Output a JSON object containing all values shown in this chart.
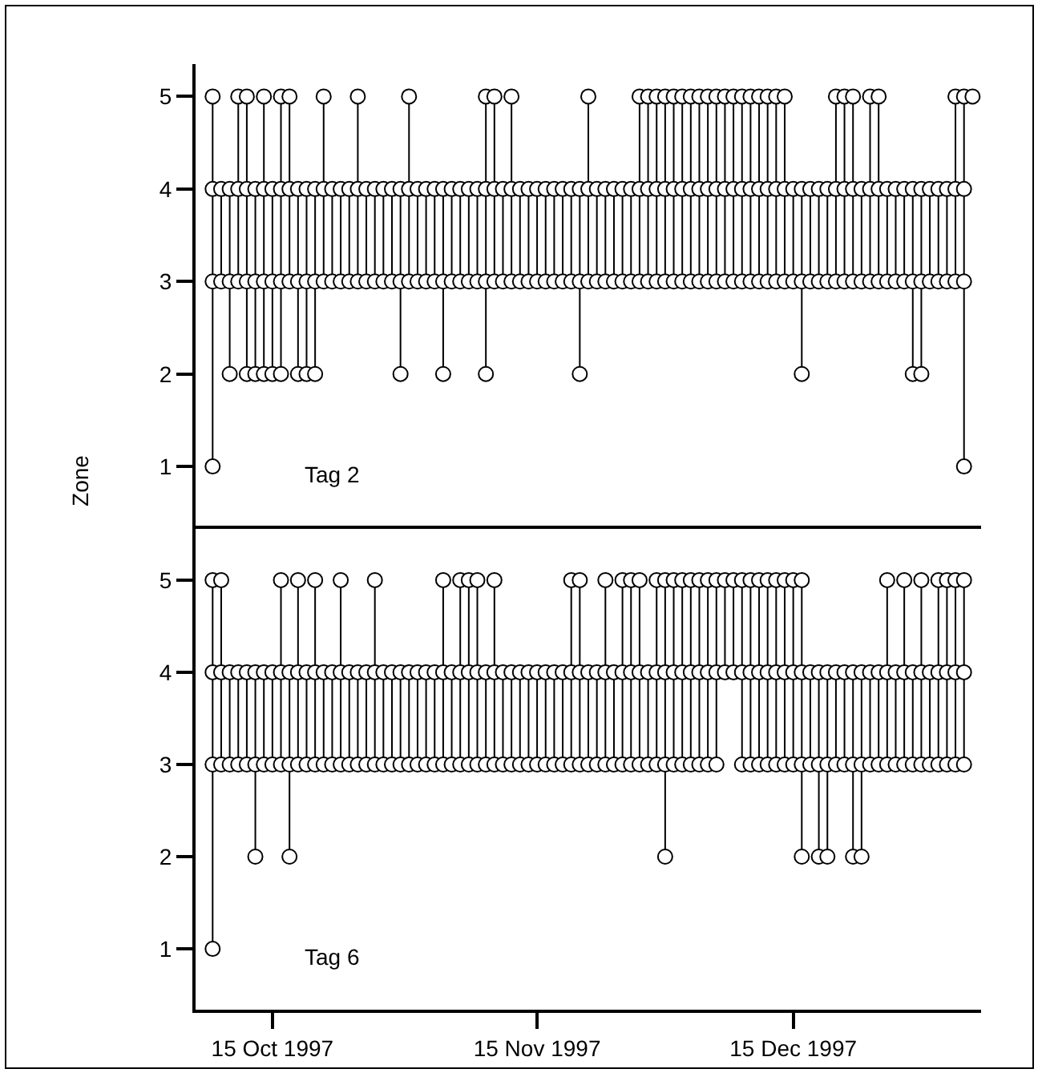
{
  "chart_data": [
    {
      "type": "line",
      "ylabel": "Zone",
      "annotations": [
        "Tag 2"
      ],
      "xlim": [
        "1997-10-06",
        "1998-01-06"
      ],
      "ylim": [
        0.36,
        5.35
      ],
      "yticks": [
        1,
        2,
        3,
        4,
        5
      ],
      "tick_labels": "y",
      "grid": false,
      "marker": "circle",
      "line_style": "solid",
      "series": [
        {
          "color": "#000000",
          "x": [
            "1997-10-08",
            "1997-10-08",
            "1997-10-08",
            "1997-10-08",
            "1997-10-09",
            "1997-10-09",
            "1997-10-10",
            "1997-10-10",
            "1997-10-10",
            "1997-10-11",
            "1997-10-11",
            "1997-10-11",
            "1997-10-12",
            "1997-10-12",
            "1997-10-12",
            "1997-10-12",
            "1997-10-13",
            "1997-10-13",
            "1997-10-13",
            "1997-10-14",
            "1997-10-14",
            "1997-10-14",
            "1997-10-14",
            "1997-10-15",
            "1997-10-15",
            "1997-10-15",
            "1997-10-16",
            "1997-10-16",
            "1997-10-16",
            "1997-10-16",
            "1997-10-17",
            "1997-10-17",
            "1997-10-17",
            "1997-10-18",
            "1997-10-18",
            "1997-10-18",
            "1997-10-19",
            "1997-10-19",
            "1997-10-19",
            "1997-10-20",
            "1997-10-20",
            "1997-10-20",
            "1997-10-21",
            "1997-10-21",
            "1997-10-21",
            "1997-10-22",
            "1997-10-22",
            "1997-10-23",
            "1997-10-23",
            "1997-10-24",
            "1997-10-24",
            "1997-10-25",
            "1997-10-25",
            "1997-10-25",
            "1997-10-26",
            "1997-10-26",
            "1997-10-27",
            "1997-10-27",
            "1997-10-28",
            "1997-10-28",
            "1997-10-29",
            "1997-10-29",
            "1997-10-30",
            "1997-10-30",
            "1997-10-30",
            "1997-10-31",
            "1997-10-31",
            "1997-10-31",
            "1997-11-01",
            "1997-11-01",
            "1997-11-02",
            "1997-11-02",
            "1997-11-03",
            "1997-11-03",
            "1997-11-04",
            "1997-11-04",
            "1997-11-04",
            "1997-11-05",
            "1997-11-05",
            "1997-11-06",
            "1997-11-06",
            "1997-11-07",
            "1997-11-07",
            "1997-11-08",
            "1997-11-08",
            "1997-11-09",
            "1997-11-09",
            "1997-11-09",
            "1997-11-09",
            "1997-11-10",
            "1997-11-10",
            "1997-11-10",
            "1997-11-11",
            "1997-11-11",
            "1997-11-12",
            "1997-11-12",
            "1997-11-12",
            "1997-11-13",
            "1997-11-13",
            "1997-11-14",
            "1997-11-14",
            "1997-11-15",
            "1997-11-15",
            "1997-11-16",
            "1997-11-16",
            "1997-11-17",
            "1997-11-17",
            "1997-11-18",
            "1997-11-18",
            "1997-11-19",
            "1997-11-19",
            "1997-11-20",
            "1997-11-20",
            "1997-11-20",
            "1997-11-21",
            "1997-11-21",
            "1997-11-21",
            "1997-11-22",
            "1997-11-22",
            "1997-11-23",
            "1997-11-23",
            "1997-11-24",
            "1997-11-24",
            "1997-11-25",
            "1997-11-25",
            "1997-11-26",
            "1997-11-26",
            "1997-11-27",
            "1997-11-27",
            "1997-11-27",
            "1997-11-28",
            "1997-11-28",
            "1997-11-28",
            "1997-11-29",
            "1997-11-29",
            "1997-11-29",
            "1997-11-30",
            "1997-11-30",
            "1997-11-30",
            "1997-12-01",
            "1997-12-01",
            "1997-12-01",
            "1997-12-02",
            "1997-12-02",
            "1997-12-02",
            "1997-12-03",
            "1997-12-03",
            "1997-12-03",
            "1997-12-04",
            "1997-12-04",
            "1997-12-04",
            "1997-12-05",
            "1997-12-05",
            "1997-12-05",
            "1997-12-06",
            "1997-12-06",
            "1997-12-06",
            "1997-12-07",
            "1997-12-07",
            "1997-12-07",
            "1997-12-08",
            "1997-12-08",
            "1997-12-08",
            "1997-12-09",
            "1997-12-09",
            "1997-12-09",
            "1997-12-10",
            "1997-12-10",
            "1997-12-10",
            "1997-12-11",
            "1997-12-11",
            "1997-12-11",
            "1997-12-12",
            "1997-12-12",
            "1997-12-12",
            "1997-12-13",
            "1997-12-13",
            "1997-12-13",
            "1997-12-14",
            "1997-12-14",
            "1997-12-14",
            "1997-12-15",
            "1997-12-15",
            "1997-12-16",
            "1997-12-16",
            "1997-12-16",
            "1997-12-17",
            "1997-12-17",
            "1997-12-18",
            "1997-12-18",
            "1997-12-19",
            "1997-12-19",
            "1997-12-20",
            "1997-12-20",
            "1997-12-20",
            "1997-12-21",
            "1997-12-21",
            "1997-12-21",
            "1997-12-22",
            "1997-12-22",
            "1997-12-22",
            "1997-12-23",
            "1997-12-23",
            "1997-12-24",
            "1997-12-24",
            "1997-12-24",
            "1997-12-25",
            "1997-12-25",
            "1997-12-25",
            "1997-12-26",
            "1997-12-26",
            "1997-12-27",
            "1997-12-27",
            "1997-12-28",
            "1997-12-28",
            "1997-12-29",
            "1997-12-29",
            "1997-12-29",
            "1997-12-30",
            "1997-12-30",
            "1997-12-30",
            "1997-12-31",
            "1997-12-31",
            "1998-01-01",
            "1998-01-01",
            "1998-01-02",
            "1998-01-02",
            "1998-01-03",
            "1998-01-03",
            "1998-01-03",
            "1998-01-04",
            "1998-01-04",
            "1998-01-04",
            "1998-01-04",
            "1998-01-05"
          ],
          "values": [
            1,
            5,
            4,
            3,
            3,
            4,
            4,
            2,
            3,
            3,
            5,
            4,
            4,
            5,
            2,
            3,
            3,
            2,
            4,
            4,
            5,
            2,
            3,
            3,
            2,
            4,
            4,
            5,
            2,
            3,
            3,
            5,
            4,
            4,
            2,
            3,
            3,
            2,
            4,
            4,
            2,
            3,
            3,
            5,
            4,
            4,
            3,
            3,
            4,
            4,
            3,
            3,
            5,
            4,
            4,
            3,
            3,
            4,
            4,
            3,
            3,
            4,
            4,
            2,
            3,
            3,
            5,
            4,
            4,
            3,
            3,
            4,
            4,
            3,
            3,
            2,
            4,
            4,
            3,
            3,
            4,
            4,
            3,
            3,
            4,
            4,
            5,
            2,
            3,
            3,
            5,
            4,
            4,
            3,
            3,
            5,
            4,
            4,
            3,
            3,
            4,
            4,
            3,
            3,
            4,
            4,
            3,
            3,
            4,
            4,
            3,
            3,
            2,
            4,
            4,
            5,
            3,
            3,
            4,
            4,
            3,
            3,
            4,
            4,
            3,
            3,
            4,
            4,
            5,
            3,
            3,
            5,
            4,
            4,
            5,
            3,
            3,
            5,
            4,
            4,
            5,
            3,
            3,
            5,
            4,
            4,
            5,
            3,
            3,
            5,
            4,
            4,
            5,
            3,
            3,
            5,
            4,
            4,
            5,
            3,
            3,
            5,
            4,
            4,
            5,
            3,
            3,
            5,
            4,
            4,
            5,
            3,
            3,
            5,
            4,
            4,
            5,
            3,
            3,
            5,
            4,
            4,
            3,
            3,
            2,
            4,
            4,
            3,
            3,
            4,
            4,
            3,
            3,
            5,
            4,
            4,
            5,
            3,
            3,
            5,
            4,
            4,
            3,
            3,
            5,
            4,
            4,
            5,
            3,
            3,
            4,
            4,
            3,
            3,
            4,
            4,
            2,
            3,
            3,
            2,
            4,
            4,
            3,
            3,
            4,
            4,
            3,
            3,
            5,
            4,
            4,
            3,
            1,
            5,
            5
          ]
        }
      ]
    },
    {
      "type": "line",
      "annotations": [
        "Tag 6"
      ],
      "xlim": [
        "1997-10-06",
        "1998-01-06"
      ],
      "ylim": [
        0.34,
        5.59
      ],
      "yticks": [
        1,
        2,
        3,
        4,
        5
      ],
      "xticks": [
        {
          "value": "1997-10-15",
          "label": "15 Oct 1997"
        },
        {
          "value": "1997-11-15",
          "label": "15 Nov 1997"
        },
        {
          "value": "1997-12-15",
          "label": "15 Dec 1997"
        }
      ],
      "grid": false,
      "marker": "circle",
      "line_style": "solid",
      "series": [
        {
          "color": "#000000",
          "x": [
            "1997-10-08",
            "1997-10-08",
            "1997-10-08",
            "1997-10-08",
            "1997-10-09",
            "1997-10-09",
            "1997-10-09",
            "1997-10-10",
            "1997-10-10",
            "1997-10-11",
            "1997-10-11",
            "1997-10-12",
            "1997-10-12",
            "1997-10-13",
            "1997-10-13",
            "1997-10-13",
            "1997-10-14",
            "1997-10-14",
            "1997-10-15",
            "1997-10-15",
            "1997-10-16",
            "1997-10-16",
            "1997-10-16",
            "1997-10-17",
            "1997-10-17",
            "1997-10-17",
            "1997-10-18",
            "1997-10-18",
            "1997-10-18",
            "1997-10-19",
            "1997-10-19",
            "1997-10-20",
            "1997-10-20",
            "1997-10-20",
            "1997-10-21",
            "1997-10-21",
            "1997-10-22",
            "1997-10-22",
            "1997-10-23",
            "1997-10-23",
            "1997-10-23",
            "1997-10-24",
            "1997-10-24",
            "1997-10-25",
            "1997-10-25",
            "1997-10-26",
            "1997-10-26",
            "1997-10-27",
            "1997-10-27",
            "1997-10-27",
            "1997-10-28",
            "1997-10-28",
            "1997-10-29",
            "1997-10-29",
            "1997-10-30",
            "1997-10-30",
            "1997-10-31",
            "1997-10-31",
            "1997-11-01",
            "1997-11-01",
            "1997-11-02",
            "1997-11-02",
            "1997-11-03",
            "1997-11-03",
            "1997-11-04",
            "1997-11-04",
            "1997-11-04",
            "1997-11-05",
            "1997-11-05",
            "1997-11-06",
            "1997-11-06",
            "1997-11-06",
            "1997-11-07",
            "1997-11-07",
            "1997-11-07",
            "1997-11-08",
            "1997-11-08",
            "1997-11-08",
            "1997-11-09",
            "1997-11-09",
            "1997-11-10",
            "1997-11-10",
            "1997-11-10",
            "1997-11-11",
            "1997-11-11",
            "1997-11-12",
            "1997-11-12",
            "1997-11-13",
            "1997-11-13",
            "1997-11-14",
            "1997-11-14",
            "1997-11-15",
            "1997-11-15",
            "1997-11-16",
            "1997-11-16",
            "1997-11-17",
            "1997-11-17",
            "1997-11-18",
            "1997-11-18",
            "1997-11-19",
            "1997-11-19",
            "1997-11-19",
            "1997-11-20",
            "1997-11-20",
            "1997-11-20",
            "1997-11-21",
            "1997-11-21",
            "1997-11-22",
            "1997-11-22",
            "1997-11-23",
            "1997-11-23",
            "1997-11-23",
            "1997-11-24",
            "1997-11-24",
            "1997-11-25",
            "1997-11-25",
            "1997-11-25",
            "1997-11-26",
            "1997-11-26",
            "1997-11-26",
            "1997-11-27",
            "1997-11-27",
            "1997-11-27",
            "1997-11-28",
            "1997-11-28",
            "1997-11-29",
            "1997-11-29",
            "1997-11-29",
            "1997-11-30",
            "1997-11-30",
            "1997-11-30",
            "1997-11-30",
            "1997-12-01",
            "1997-12-01",
            "1997-12-01",
            "1997-12-02",
            "1997-12-02",
            "1997-12-02",
            "1997-12-03",
            "1997-12-03",
            "1997-12-03",
            "1997-12-04",
            "1997-12-04",
            "1997-12-04",
            "1997-12-05",
            "1997-12-05",
            "1997-12-05",
            "1997-12-06",
            "1997-12-06",
            "1997-12-06",
            "1997-12-07",
            "1997-12-07",
            "1997-12-08",
            "1997-12-08",
            "1997-12-09",
            "1997-12-09",
            "1997-12-09",
            "1997-12-10",
            "1997-12-10",
            "1997-12-10",
            "1997-12-11",
            "1997-12-11",
            "1997-12-11",
            "1997-12-12",
            "1997-12-12",
            "1997-12-12",
            "1997-12-13",
            "1997-12-13",
            "1997-12-13",
            "1997-12-14",
            "1997-12-14",
            "1997-12-14",
            "1997-12-15",
            "1997-12-15",
            "1997-12-15",
            "1997-12-16",
            "1997-12-16",
            "1997-12-16",
            "1997-12-16",
            "1997-12-17",
            "1997-12-17",
            "1997-12-18",
            "1997-12-18",
            "1997-12-18",
            "1997-12-19",
            "1997-12-19",
            "1997-12-19",
            "1997-12-20",
            "1997-12-20",
            "1997-12-21",
            "1997-12-21",
            "1997-12-22",
            "1997-12-22",
            "1997-12-22",
            "1997-12-23",
            "1997-12-23",
            "1997-12-23",
            "1997-12-24",
            "1997-12-24",
            "1997-12-25",
            "1997-12-25",
            "1997-12-26",
            "1997-12-26",
            "1997-12-26",
            "1997-12-27",
            "1997-12-27",
            "1997-12-28",
            "1997-12-28",
            "1997-12-28",
            "1997-12-29",
            "1997-12-29",
            "1997-12-30",
            "1997-12-30",
            "1997-12-30",
            "1997-12-31",
            "1997-12-31",
            "1998-01-01",
            "1998-01-01",
            "1998-01-01",
            "1998-01-02",
            "1998-01-02",
            "1998-01-02",
            "1998-01-03",
            "1998-01-03",
            "1998-01-03",
            "1998-01-04",
            "1998-01-04",
            "1998-01-04"
          ],
          "values": [
            1,
            5,
            4,
            3,
            3,
            5,
            4,
            4,
            3,
            3,
            4,
            4,
            3,
            3,
            2,
            4,
            4,
            3,
            3,
            4,
            4,
            5,
            3,
            3,
            2,
            4,
            4,
            5,
            3,
            3,
            4,
            4,
            5,
            3,
            3,
            4,
            4,
            3,
            3,
            5,
            4,
            4,
            3,
            3,
            4,
            4,
            3,
            3,
            5,
            4,
            4,
            3,
            3,
            4,
            4,
            3,
            3,
            4,
            4,
            3,
            3,
            4,
            4,
            3,
            3,
            5,
            4,
            4,
            3,
            3,
            5,
            4,
            4,
            5,
            3,
            3,
            5,
            4,
            4,
            3,
            3,
            5,
            4,
            4,
            3,
            3,
            4,
            4,
            3,
            3,
            4,
            4,
            3,
            3,
            4,
            4,
            3,
            3,
            4,
            4,
            5,
            3,
            3,
            5,
            4,
            4,
            3,
            3,
            4,
            4,
            5,
            3,
            3,
            4,
            4,
            5,
            3,
            3,
            5,
            4,
            4,
            5,
            3,
            3,
            4,
            4,
            5,
            3,
            3,
            5,
            2,
            4,
            4,
            5,
            3,
            3,
            5,
            4,
            4,
            5,
            3,
            3,
            5,
            4,
            4,
            5,
            3,
            3,
            5,
            4,
            4,
            5,
            5,
            4,
            4,
            5,
            3,
            3,
            5,
            4,
            4,
            5,
            3,
            3,
            5,
            4,
            4,
            5,
            3,
            3,
            5,
            4,
            4,
            5,
            3,
            3,
            5,
            2,
            4,
            4,
            3,
            3,
            2,
            4,
            4,
            2,
            3,
            3,
            4,
            4,
            3,
            3,
            2,
            4,
            4,
            2,
            3,
            3,
            4,
            4,
            3,
            3,
            5,
            4,
            4,
            3,
            3,
            5,
            4,
            4,
            3,
            3,
            5,
            4,
            4,
            3,
            3,
            5,
            4,
            4,
            5,
            3,
            3,
            5,
            4,
            4,
            3,
            5
          ]
        }
      ]
    }
  ]
}
